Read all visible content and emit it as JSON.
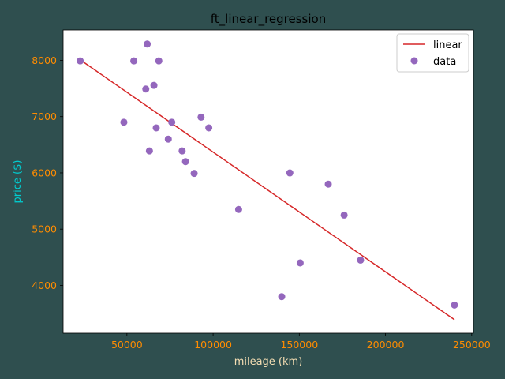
{
  "figure": {
    "background": "#2f4f4f"
  },
  "chart_data": {
    "type": "scatter",
    "title": "ft_linear_regression",
    "xlabel": "mileage (km)",
    "ylabel": "price ($)",
    "xlim": [
      13000,
      251000
    ],
    "ylim": [
      3150,
      8540
    ],
    "x_ticks": [
      50000,
      100000,
      150000,
      200000,
      250000
    ],
    "x_tick_labels": [
      "50000",
      "100000",
      "150000",
      "200000",
      "250000"
    ],
    "y_ticks": [
      4000,
      5000,
      6000,
      7000,
      8000
    ],
    "y_tick_labels": [
      "4000",
      "5000",
      "6000",
      "7000",
      "8000"
    ],
    "grid": false,
    "legend_position": "top-right",
    "colors": {
      "plot_background": "#ffffff",
      "title": "#000000",
      "xlabel": "#f5deb3",
      "ylabel": "#00ced1",
      "tick_labels": "#ff8c00",
      "line": "#d62728",
      "points": "#9467bd"
    },
    "series": [
      {
        "name": "linear",
        "kind": "line",
        "x": [
          22899,
          240000
        ],
        "y": [
          8010,
          3390
        ]
      },
      {
        "name": "data",
        "kind": "scatter",
        "x": [
          240000,
          139800,
          150500,
          185530,
          176000,
          114800,
          166800,
          89000,
          144500,
          84000,
          82029,
          63060,
          74000,
          97500,
          67000,
          76025,
          48235,
          93000,
          60949,
          65674,
          54000,
          68500,
          22899,
          61789
        ],
        "y": [
          3650,
          3800,
          4400,
          4450,
          5250,
          5350,
          5800,
          5990,
          5999,
          6200,
          6390,
          6390,
          6600,
          6800,
          6800,
          6900,
          6900,
          6990,
          7490,
          7555,
          7990,
          7990,
          7990,
          8290
        ]
      }
    ]
  }
}
